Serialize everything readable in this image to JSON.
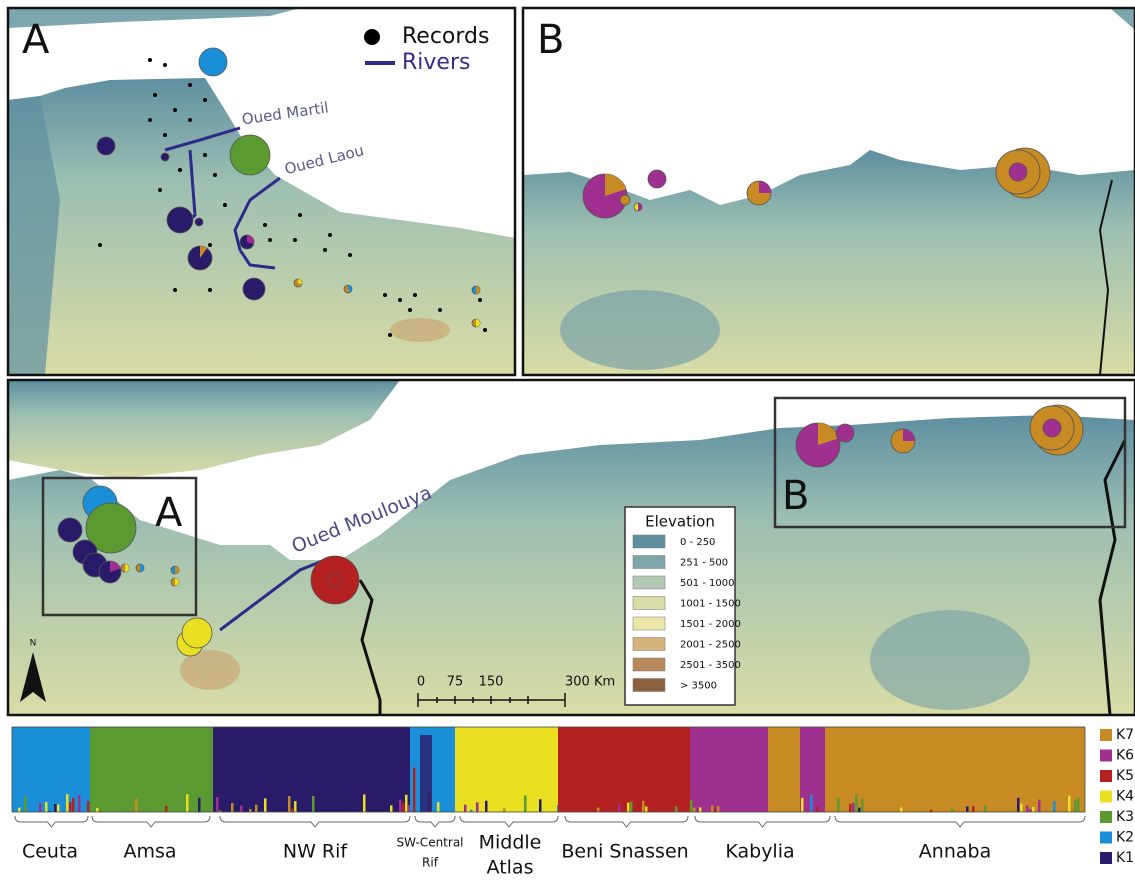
{
  "panel_a": {
    "label": "A",
    "legend": {
      "records": "Records",
      "rivers": "Rivers"
    },
    "rivers": [
      "Oued Martil",
      "Oued Laou"
    ]
  },
  "panel_b": {
    "label": "B"
  },
  "overview": {
    "inset_labels": [
      "A",
      "B"
    ],
    "river": "Oued Moulouya",
    "north": "N",
    "elevation_legend": {
      "title": "Elevation",
      "classes": [
        "0 - 250",
        "251 - 500",
        "501 - 1000",
        "1001 - 1500",
        "1501 - 2000",
        "2001 - 2500",
        "2501 - 3500",
        "> 3500"
      ]
    },
    "scale": {
      "ticks": [
        "0",
        "75",
        "150",
        "300 Km"
      ]
    }
  },
  "structure": {
    "populations": [
      {
        "lines": [
          "Ceuta"
        ]
      },
      {
        "lines": [
          "Amsa"
        ]
      },
      {
        "lines": [
          "NW Rif"
        ]
      },
      {
        "lines": [
          "SW-Central",
          "Rif"
        ]
      },
      {
        "lines": [
          "Middle",
          "Atlas"
        ]
      },
      {
        "lines": [
          "Beni Snassen"
        ]
      },
      {
        "lines": [
          "Kabylia"
        ]
      },
      {
        "lines": [
          "Annaba"
        ]
      }
    ],
    "clusters": [
      {
        "name": "K7",
        "color": "#c88a22"
      },
      {
        "name": "K6",
        "color": "#a0308f"
      },
      {
        "name": "K5",
        "color": "#b52020"
      },
      {
        "name": "K4",
        "color": "#e8e020"
      },
      {
        "name": "K3",
        "color": "#5a9a30"
      },
      {
        "name": "K2",
        "color": "#1a8fd8"
      },
      {
        "name": "K1",
        "color": "#2a1a6a"
      }
    ]
  }
}
